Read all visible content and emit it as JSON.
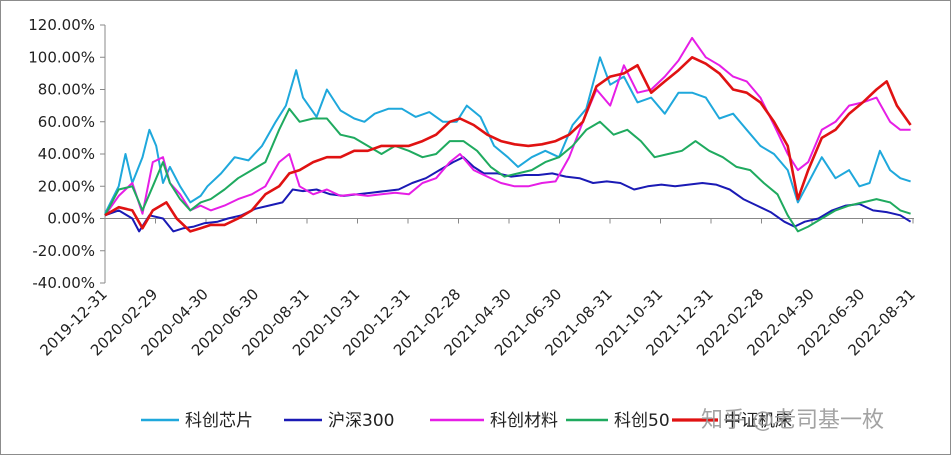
{
  "chart_data": {
    "type": "line",
    "title": "",
    "xlabel": "",
    "ylabel": "",
    "ylim": [
      -40,
      120
    ],
    "y_ticks": [
      "120.00%",
      "100.00%",
      "80.00%",
      "60.00%",
      "40.00%",
      "20.00%",
      "0.00%",
      "-20.00%",
      "-40.00%"
    ],
    "x_ticks": [
      "2019-12-31",
      "2020-02-29",
      "2020-04-30",
      "2020-06-30",
      "2020-08-31",
      "2020-10-31",
      "2020-12-31",
      "2021-02-28",
      "2021-04-30",
      "2021-06-30",
      "2021-08-31",
      "2021-10-31",
      "2021-12-31",
      "2022-02-28",
      "2022-04-30",
      "2022-06-30",
      "2022-08-31"
    ],
    "grid": false,
    "legend_position": "bottom",
    "x_unit": "months since 2019-12-31",
    "series": [
      {
        "name": "科创芯片",
        "color": "#1fa8dc",
        "points": [
          [
            0,
            3
          ],
          [
            0.4,
            20
          ],
          [
            0.6,
            40
          ],
          [
            0.8,
            22
          ],
          [
            1.1,
            38
          ],
          [
            1.3,
            55
          ],
          [
            1.5,
            45
          ],
          [
            1.7,
            22
          ],
          [
            1.9,
            32
          ],
          [
            2.2,
            20
          ],
          [
            2.5,
            10
          ],
          [
            2.8,
            14
          ],
          [
            3,
            20
          ],
          [
            3.4,
            28
          ],
          [
            3.8,
            38
          ],
          [
            4.2,
            36
          ],
          [
            4.6,
            45
          ],
          [
            5,
            60
          ],
          [
            5.3,
            70
          ],
          [
            5.6,
            92
          ],
          [
            5.8,
            75
          ],
          [
            6.2,
            63
          ],
          [
            6.5,
            80
          ],
          [
            6.9,
            67
          ],
          [
            7.3,
            62
          ],
          [
            7.6,
            60
          ],
          [
            7.9,
            65
          ],
          [
            8.3,
            68
          ],
          [
            8.7,
            68
          ],
          [
            9.1,
            63
          ],
          [
            9.5,
            66
          ],
          [
            9.9,
            60
          ],
          [
            10.3,
            60
          ],
          [
            10.6,
            70
          ],
          [
            11,
            63
          ],
          [
            11.4,
            45
          ],
          [
            11.8,
            38
          ],
          [
            12.1,
            32
          ],
          [
            12.5,
            38
          ],
          [
            12.9,
            42
          ],
          [
            13.3,
            38
          ],
          [
            13.7,
            58
          ],
          [
            14.1,
            68
          ],
          [
            14.5,
            100
          ],
          [
            14.8,
            83
          ],
          [
            15.2,
            88
          ],
          [
            15.6,
            72
          ],
          [
            16,
            75
          ],
          [
            16.4,
            65
          ],
          [
            16.8,
            78
          ],
          [
            17.2,
            78
          ],
          [
            17.6,
            75
          ],
          [
            18,
            62
          ],
          [
            18.4,
            65
          ],
          [
            18.8,
            55
          ],
          [
            19.2,
            45
          ],
          [
            19.6,
            40
          ],
          [
            20,
            30
          ],
          [
            20.3,
            10
          ],
          [
            20.6,
            22
          ],
          [
            21,
            38
          ],
          [
            21.4,
            25
          ],
          [
            21.8,
            30
          ],
          [
            22.1,
            20
          ],
          [
            22.4,
            22
          ],
          [
            22.7,
            42
          ],
          [
            23,
            30
          ],
          [
            23.3,
            25
          ],
          [
            23.6,
            23
          ]
        ]
      },
      {
        "name": "沪深300",
        "color": "#1a1ab5",
        "points": [
          [
            0,
            2
          ],
          [
            0.4,
            5
          ],
          [
            0.8,
            0
          ],
          [
            1,
            -8
          ],
          [
            1.3,
            2
          ],
          [
            1.7,
            0
          ],
          [
            2,
            -8
          ],
          [
            2.3,
            -6
          ],
          [
            2.6,
            -5
          ],
          [
            2.9,
            -3
          ],
          [
            3.3,
            -2
          ],
          [
            3.6,
            0
          ],
          [
            4,
            2
          ],
          [
            4.4,
            6
          ],
          [
            4.8,
            8
          ],
          [
            5.2,
            10
          ],
          [
            5.5,
            18
          ],
          [
            5.8,
            17
          ],
          [
            6.2,
            18
          ],
          [
            6.6,
            15
          ],
          [
            7,
            14
          ],
          [
            7.4,
            15
          ],
          [
            7.8,
            16
          ],
          [
            8.2,
            17
          ],
          [
            8.6,
            18
          ],
          [
            9,
            22
          ],
          [
            9.4,
            25
          ],
          [
            9.8,
            30
          ],
          [
            10.2,
            35
          ],
          [
            10.5,
            38
          ],
          [
            10.8,
            32
          ],
          [
            11.1,
            28
          ],
          [
            11.5,
            28
          ],
          [
            11.9,
            26
          ],
          [
            12.3,
            27
          ],
          [
            12.7,
            27
          ],
          [
            13.1,
            28
          ],
          [
            13.5,
            26
          ],
          [
            13.9,
            25
          ],
          [
            14.3,
            22
          ],
          [
            14.7,
            23
          ],
          [
            15.1,
            22
          ],
          [
            15.5,
            18
          ],
          [
            15.9,
            20
          ],
          [
            16.3,
            21
          ],
          [
            16.7,
            20
          ],
          [
            17.1,
            21
          ],
          [
            17.5,
            22
          ],
          [
            17.9,
            21
          ],
          [
            18.3,
            18
          ],
          [
            18.7,
            12
          ],
          [
            19.1,
            8
          ],
          [
            19.5,
            4
          ],
          [
            19.9,
            -2
          ],
          [
            20.2,
            -5
          ],
          [
            20.5,
            -2
          ],
          [
            20.9,
            0
          ],
          [
            21.3,
            5
          ],
          [
            21.7,
            8
          ],
          [
            22.1,
            9
          ],
          [
            22.5,
            5
          ],
          [
            22.9,
            4
          ],
          [
            23.3,
            2
          ],
          [
            23.6,
            -2
          ]
        ]
      },
      {
        "name": "科创材料",
        "color": "#e61ee6",
        "points": [
          [
            0,
            2
          ],
          [
            0.4,
            14
          ],
          [
            0.8,
            22
          ],
          [
            1.1,
            3
          ],
          [
            1.4,
            35
          ],
          [
            1.7,
            38
          ],
          [
            1.9,
            22
          ],
          [
            2.2,
            15
          ],
          [
            2.5,
            5
          ],
          [
            2.8,
            8
          ],
          [
            3.1,
            5
          ],
          [
            3.5,
            8
          ],
          [
            3.9,
            12
          ],
          [
            4.3,
            15
          ],
          [
            4.7,
            20
          ],
          [
            5.1,
            35
          ],
          [
            5.4,
            40
          ],
          [
            5.7,
            20
          ],
          [
            6.1,
            15
          ],
          [
            6.5,
            18
          ],
          [
            6.9,
            14
          ],
          [
            7.3,
            15
          ],
          [
            7.7,
            14
          ],
          [
            8.1,
            15
          ],
          [
            8.5,
            16
          ],
          [
            8.9,
            15
          ],
          [
            9.3,
            22
          ],
          [
            9.7,
            25
          ],
          [
            10.1,
            35
          ],
          [
            10.4,
            40
          ],
          [
            10.8,
            30
          ],
          [
            11.2,
            26
          ],
          [
            11.6,
            22
          ],
          [
            12,
            20
          ],
          [
            12.4,
            20
          ],
          [
            12.8,
            22
          ],
          [
            13.2,
            23
          ],
          [
            13.6,
            38
          ],
          [
            14,
            60
          ],
          [
            14.4,
            80
          ],
          [
            14.8,
            70
          ],
          [
            15.2,
            95
          ],
          [
            15.6,
            78
          ],
          [
            16,
            80
          ],
          [
            16.4,
            88
          ],
          [
            16.8,
            98
          ],
          [
            17.2,
            112
          ],
          [
            17.6,
            100
          ],
          [
            18,
            95
          ],
          [
            18.4,
            88
          ],
          [
            18.8,
            85
          ],
          [
            19.2,
            75
          ],
          [
            19.6,
            58
          ],
          [
            20,
            40
          ],
          [
            20.3,
            30
          ],
          [
            20.6,
            35
          ],
          [
            21,
            55
          ],
          [
            21.4,
            60
          ],
          [
            21.8,
            70
          ],
          [
            22.2,
            72
          ],
          [
            22.6,
            75
          ],
          [
            23,
            60
          ],
          [
            23.3,
            55
          ],
          [
            23.6,
            55
          ]
        ]
      },
      {
        "name": "科创50",
        "color": "#1faa5f",
        "points": [
          [
            0,
            2
          ],
          [
            0.4,
            18
          ],
          [
            0.8,
            20
          ],
          [
            1.1,
            5
          ],
          [
            1.4,
            20
          ],
          [
            1.7,
            35
          ],
          [
            1.9,
            22
          ],
          [
            2.2,
            12
          ],
          [
            2.5,
            5
          ],
          [
            2.8,
            10
          ],
          [
            3.1,
            12
          ],
          [
            3.5,
            18
          ],
          [
            3.9,
            25
          ],
          [
            4.3,
            30
          ],
          [
            4.7,
            35
          ],
          [
            5.1,
            55
          ],
          [
            5.4,
            68
          ],
          [
            5.7,
            60
          ],
          [
            6.1,
            62
          ],
          [
            6.5,
            62
          ],
          [
            6.9,
            52
          ],
          [
            7.3,
            50
          ],
          [
            7.7,
            45
          ],
          [
            8.1,
            40
          ],
          [
            8.5,
            45
          ],
          [
            8.9,
            42
          ],
          [
            9.3,
            38
          ],
          [
            9.7,
            40
          ],
          [
            10.1,
            48
          ],
          [
            10.5,
            48
          ],
          [
            10.9,
            42
          ],
          [
            11.3,
            32
          ],
          [
            11.7,
            26
          ],
          [
            12.1,
            28
          ],
          [
            12.5,
            30
          ],
          [
            12.9,
            35
          ],
          [
            13.3,
            38
          ],
          [
            13.7,
            45
          ],
          [
            14.1,
            55
          ],
          [
            14.5,
            60
          ],
          [
            14.9,
            52
          ],
          [
            15.3,
            55
          ],
          [
            15.7,
            48
          ],
          [
            16.1,
            38
          ],
          [
            16.5,
            40
          ],
          [
            16.9,
            42
          ],
          [
            17.3,
            48
          ],
          [
            17.7,
            42
          ],
          [
            18.1,
            38
          ],
          [
            18.5,
            32
          ],
          [
            18.9,
            30
          ],
          [
            19.3,
            22
          ],
          [
            19.7,
            15
          ],
          [
            20,
            2
          ],
          [
            20.3,
            -8
          ],
          [
            20.6,
            -5
          ],
          [
            21,
            0
          ],
          [
            21.4,
            5
          ],
          [
            21.8,
            8
          ],
          [
            22.2,
            10
          ],
          [
            22.6,
            12
          ],
          [
            23,
            10
          ],
          [
            23.3,
            5
          ],
          [
            23.6,
            3
          ]
        ]
      },
      {
        "name": "中证机床",
        "color": "#e01212",
        "points": [
          [
            0,
            2
          ],
          [
            0.4,
            7
          ],
          [
            0.8,
            5
          ],
          [
            1.1,
            -6
          ],
          [
            1.4,
            5
          ],
          [
            1.8,
            10
          ],
          [
            2.1,
            0
          ],
          [
            2.5,
            -8
          ],
          [
            2.8,
            -6
          ],
          [
            3.1,
            -4
          ],
          [
            3.5,
            -4
          ],
          [
            3.9,
            0
          ],
          [
            4.3,
            5
          ],
          [
            4.7,
            15
          ],
          [
            5.1,
            20
          ],
          [
            5.4,
            28
          ],
          [
            5.7,
            30
          ],
          [
            6.1,
            35
          ],
          [
            6.5,
            38
          ],
          [
            6.9,
            38
          ],
          [
            7.3,
            42
          ],
          [
            7.7,
            42
          ],
          [
            8.1,
            45
          ],
          [
            8.5,
            45
          ],
          [
            8.9,
            45
          ],
          [
            9.3,
            48
          ],
          [
            9.7,
            52
          ],
          [
            10.1,
            60
          ],
          [
            10.4,
            62
          ],
          [
            10.8,
            58
          ],
          [
            11.2,
            52
          ],
          [
            11.6,
            48
          ],
          [
            12,
            46
          ],
          [
            12.4,
            45
          ],
          [
            12.8,
            46
          ],
          [
            13.2,
            48
          ],
          [
            13.6,
            52
          ],
          [
            14,
            60
          ],
          [
            14.4,
            82
          ],
          [
            14.8,
            88
          ],
          [
            15.2,
            90
          ],
          [
            15.6,
            95
          ],
          [
            16,
            78
          ],
          [
            16.4,
            85
          ],
          [
            16.8,
            92
          ],
          [
            17.2,
            100
          ],
          [
            17.6,
            96
          ],
          [
            18,
            90
          ],
          [
            18.4,
            80
          ],
          [
            18.8,
            78
          ],
          [
            19.2,
            72
          ],
          [
            19.6,
            60
          ],
          [
            20,
            45
          ],
          [
            20.3,
            12
          ],
          [
            20.6,
            30
          ],
          [
            21,
            50
          ],
          [
            21.4,
            55
          ],
          [
            21.8,
            65
          ],
          [
            22.2,
            72
          ],
          [
            22.6,
            80
          ],
          [
            22.9,
            85
          ],
          [
            23.2,
            70
          ],
          [
            23.6,
            58
          ]
        ]
      }
    ]
  },
  "watermark": "知乎 @老司基一枚"
}
